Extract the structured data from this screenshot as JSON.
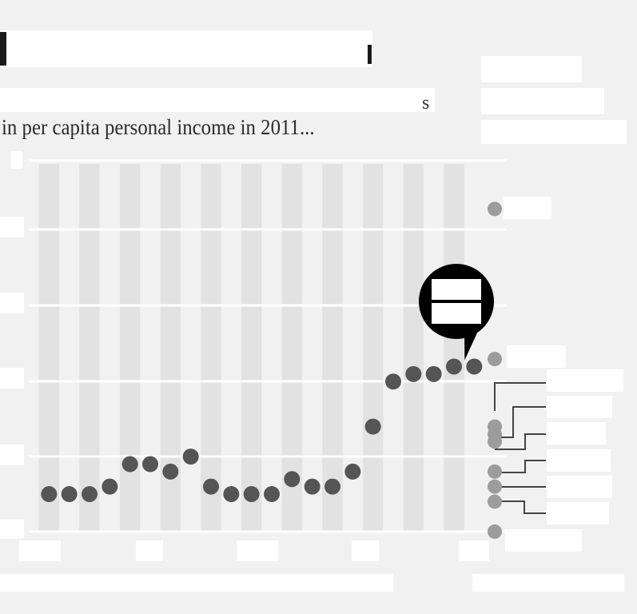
{
  "subtitle": "in per capita personal income in 2011...",
  "subtitle_tail": "s",
  "callout_label": "",
  "colors": {
    "background": "#f1f1f1",
    "band": "#e2e2e2",
    "gridline": "#ffffff",
    "point": "#555555",
    "point_muted": "#9c9c9c",
    "callout": "#000000",
    "redaction": "#ffffff"
  },
  "chart_data": {
    "type": "scatter",
    "title": "",
    "xlabel": "",
    "ylabel": "",
    "x": [
      1,
      2,
      3,
      4,
      5,
      6,
      7,
      8,
      9,
      10,
      11,
      12,
      13,
      14,
      15,
      16,
      17,
      18,
      19,
      20,
      21,
      22
    ],
    "y": [
      0.5,
      0.5,
      0.5,
      0.6,
      0.9,
      0.9,
      0.8,
      1.0,
      0.6,
      0.5,
      0.5,
      0.5,
      0.7,
      0.6,
      0.6,
      0.8,
      1.4,
      2.0,
      2.1,
      2.1,
      2.2,
      2.2
    ],
    "highlight_index": 21,
    "comparison_points": [
      4.3,
      2.3,
      1.4,
      1.3,
      1.2,
      0.8,
      0.6,
      0.4,
      0.0
    ],
    "xlim": [
      0,
      22.5
    ],
    "ylim": [
      0,
      4.9
    ],
    "grid": true
  }
}
